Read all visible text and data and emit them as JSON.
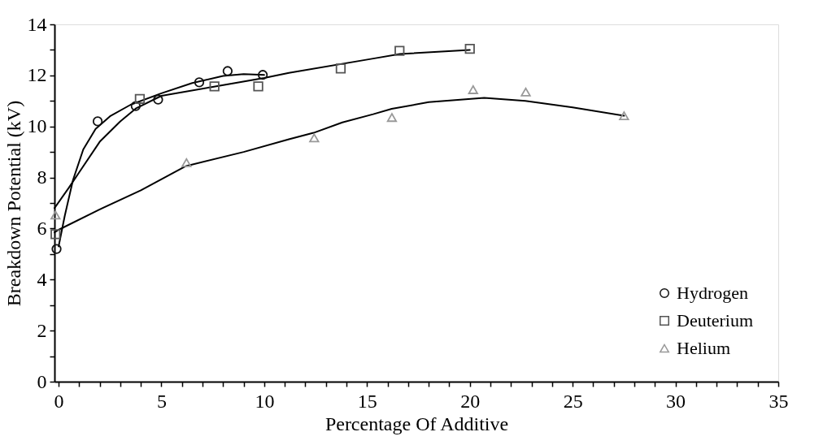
{
  "chart_data": {
    "type": "scatter",
    "xlabel": "Percentage Of Additive",
    "ylabel": "Breakdown Potential (kV)",
    "xlim": [
      -0.2,
      35
    ],
    "ylim": [
      0,
      14
    ],
    "xticks": [
      0,
      {
        "value": 1,
        "label": null
      },
      {
        "value": 2,
        "label": null
      },
      {
        "value": 3,
        "label": null
      },
      {
        "value": 4,
        "label": null
      },
      5,
      {
        "value": 6,
        "label": null
      },
      {
        "value": 7,
        "label": null
      },
      {
        "value": 8,
        "label": null
      },
      {
        "value": 9,
        "label": null
      },
      10,
      {
        "value": 11,
        "label": null
      },
      {
        "value": 12,
        "label": null
      },
      {
        "value": 13,
        "label": null
      },
      {
        "value": 14,
        "label": null
      },
      15,
      {
        "value": 16,
        "label": null
      },
      {
        "value": 17,
        "label": null
      },
      {
        "value": 18,
        "label": null
      },
      {
        "value": 19,
        "label": null
      },
      20,
      {
        "value": 21,
        "label": null
      },
      {
        "value": 22,
        "label": null
      },
      {
        "value": 23,
        "label": null
      },
      {
        "value": 24,
        "label": null
      },
      25,
      {
        "value": 26,
        "label": null
      },
      {
        "value": 27,
        "label": null
      },
      {
        "value": 28,
        "label": null
      },
      {
        "value": 29,
        "label": null
      },
      30,
      {
        "value": 31,
        "label": null
      },
      {
        "value": 32,
        "label": null
      },
      {
        "value": 33,
        "label": null
      },
      {
        "value": 34,
        "label": null
      },
      35
    ],
    "yticks": [
      0,
      {
        "value": 1,
        "label": null
      },
      2,
      {
        "value": 3,
        "label": null
      },
      4,
      {
        "value": 5,
        "label": null
      },
      6,
      {
        "value": 7,
        "label": null
      },
      8,
      {
        "value": 9,
        "label": null
      },
      10,
      {
        "value": 11,
        "label": null
      },
      12,
      {
        "value": 13,
        "label": null
      },
      14
    ],
    "grid": false,
    "legend": "bottom right",
    "series": [
      {
        "name": "Hydrogen",
        "marker": "circle",
        "color": "#111111",
        "x": [
          -0.1,
          1.9,
          3.75,
          4.84,
          6.84,
          8.22,
          9.93
        ],
        "values": [
          5.2,
          10.2,
          10.8,
          11.05,
          11.73,
          12.17,
          12.02
        ]
      },
      {
        "name": "Deuterium",
        "marker": "square",
        "color": "#555555",
        "x": [
          -0.15,
          3.95,
          7.58,
          9.71,
          13.72,
          16.58,
          20.0
        ],
        "values": [
          5.78,
          11.08,
          11.57,
          11.57,
          12.27,
          12.96,
          13.04
        ]
      },
      {
        "name": "Helium",
        "marker": "triangle",
        "color": "#999999",
        "x": [
          -0.15,
          6.22,
          12.43,
          16.21,
          20.16,
          22.72,
          27.5
        ],
        "values": [
          6.53,
          8.58,
          9.55,
          10.35,
          11.44,
          11.35,
          10.42
        ]
      },
      {
        "type": "line",
        "line_style": "solid",
        "color": "#000000",
        "x": [
          0.0,
          0.3,
          0.7,
          1.2,
          1.8,
          2.5,
          3.5,
          5.0,
          6.5,
          8.0,
          9.0,
          10.0
        ],
        "values": [
          5.3,
          6.5,
          7.9,
          9.1,
          9.9,
          10.4,
          10.85,
          11.3,
          11.7,
          11.98,
          12.05,
          12.02
        ]
      },
      {
        "type": "line",
        "line_style": "solid",
        "color": "#000000",
        "x": [
          -0.2,
          0.5,
          1.0,
          2.0,
          3.0,
          3.75,
          5.0,
          7.5,
          10.0,
          11.2,
          15.3,
          16.6,
          20.0
        ],
        "values": [
          6.8,
          7.6,
          8.2,
          9.4,
          10.2,
          10.7,
          11.2,
          11.55,
          11.9,
          12.1,
          12.66,
          12.84,
          13.0
        ]
      },
      {
        "type": "line",
        "line_style": "solid",
        "color": "#000000",
        "x": [
          -0.2,
          0.0,
          2.0,
          4.0,
          6.2,
          9.0,
          11.2,
          12.4,
          13.8,
          15.3,
          16.2,
          18.0,
          20.7,
          22.7,
          25.0,
          27.5
        ],
        "values": [
          5.85,
          5.95,
          6.75,
          7.5,
          8.45,
          9.0,
          9.5,
          9.75,
          10.16,
          10.48,
          10.69,
          10.95,
          11.12,
          11.0,
          10.75,
          10.42
        ]
      }
    ]
  }
}
